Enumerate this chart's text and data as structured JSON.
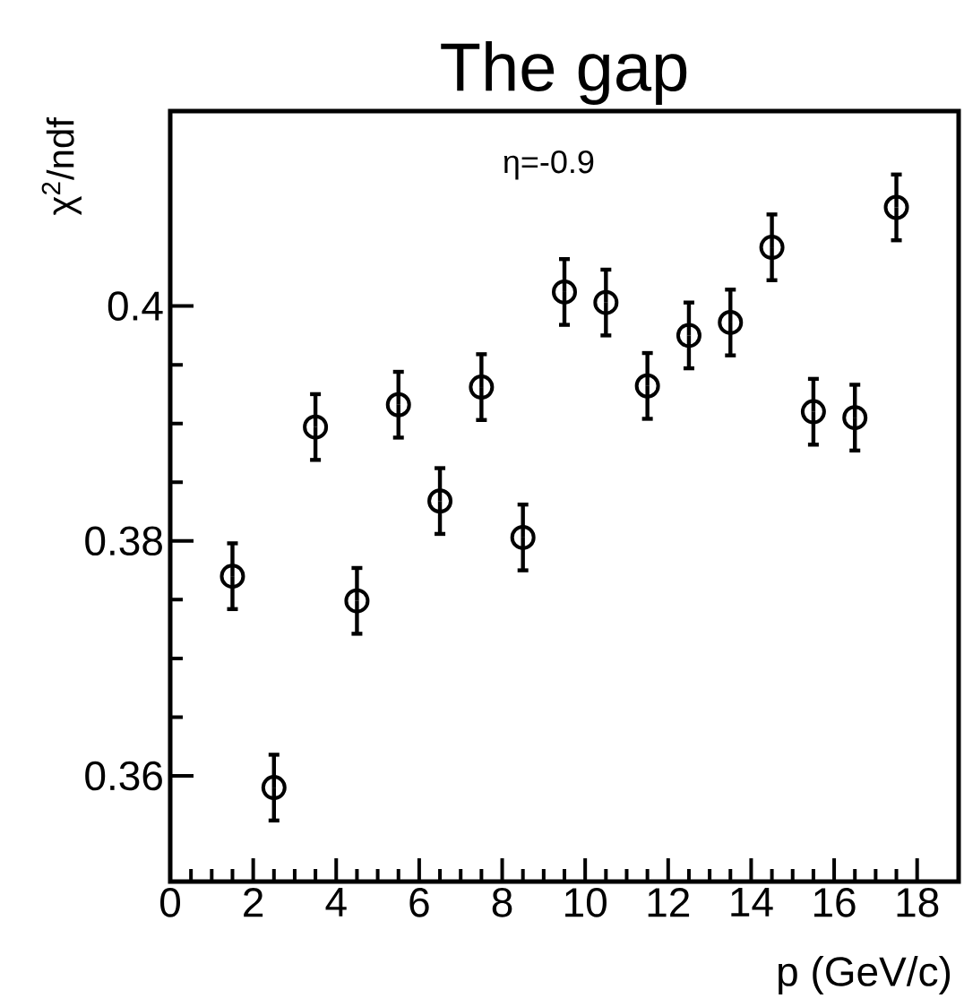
{
  "chart_data": {
    "type": "scatter",
    "title": "The gap",
    "xlabel": "p (GeV/c)",
    "ylabel": "χ$^{2}$/ndf",
    "annotations": [
      "η=-0.9"
    ],
    "x": [
      1.5,
      2.5,
      3.5,
      4.5,
      5.5,
      6.5,
      7.5,
      8.5,
      9.5,
      10.5,
      11.5,
      12.5,
      13.5,
      14.5,
      15.5,
      16.5,
      17.5
    ],
    "series": [
      {
        "color": "#000000",
        "values": [
          0.377,
          0.359,
          0.3897,
          0.3749,
          0.3916,
          0.3834,
          0.3931,
          0.3803,
          0.4012,
          0.4003,
          0.3932,
          0.3975,
          0.3986,
          0.405,
          0.391,
          0.3905,
          0.4084
        ],
        "errors": [
          0.0028,
          0.0028,
          0.0028,
          0.0028,
          0.0028,
          0.0028,
          0.0028,
          0.0028,
          0.0028,
          0.0028,
          0.0028,
          0.0028,
          0.0028,
          0.0028,
          0.0028,
          0.0028,
          0.0028
        ]
      }
    ],
    "xlim": [
      0,
      19
    ],
    "ylim": [
      0.351,
      0.4166
    ],
    "xticks": [
      0,
      2,
      4,
      6,
      8,
      10,
      12,
      14,
      16,
      18
    ],
    "yticks": [
      0.36,
      0.38,
      {
        "value": 0.4,
        "label": "0.4"
      }
    ],
    "marker": "circle",
    "grid": false
  }
}
